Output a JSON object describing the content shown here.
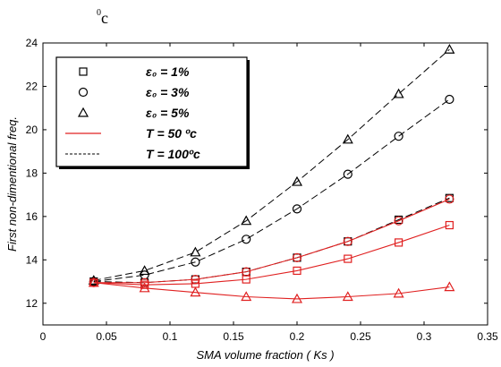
{
  "stray_label": {
    "sup": "0",
    "text": "c"
  },
  "chart_data": {
    "type": "line",
    "xlabel": "SMA volume fraction ( Ks )",
    "ylabel": "First non-dimentional freq.",
    "xlim": [
      0,
      0.35
    ],
    "ylim": [
      11,
      24
    ],
    "x_ticks": [
      "0",
      "0.05",
      "0.1",
      "0.15",
      "0.2",
      "0.25",
      "0.3",
      "0.35"
    ],
    "y_ticks": [
      "12",
      "14",
      "16",
      "18",
      "20",
      "22",
      "24"
    ],
    "grid": false,
    "legend_placement": "top-left",
    "legend": [
      {
        "label": "ε₀ = 1%",
        "symbol": "square"
      },
      {
        "label": "ε₀ = 3%",
        "symbol": "circle"
      },
      {
        "label": "ε₀ = 5%",
        "symbol": "triangle"
      },
      {
        "label": "T = 50 ºc",
        "symbol": "solid-red-line"
      },
      {
        "label": "T = 100ºc",
        "symbol": "dashed-black-line"
      }
    ],
    "x": [
      0.04,
      0.08,
      0.12,
      0.16,
      0.2,
      0.24,
      0.28,
      0.32
    ],
    "series": [
      {
        "strain": "1%",
        "temperature": "50",
        "marker": "square",
        "color": "#e02020",
        "dash": false,
        "values": [
          12.95,
          12.85,
          12.9,
          13.1,
          13.5,
          14.05,
          14.8,
          15.6
        ]
      },
      {
        "strain": "3%",
        "temperature": "50",
        "marker": "circle",
        "color": "#e02020",
        "dash": false,
        "values": [
          12.95,
          12.95,
          13.1,
          13.45,
          14.1,
          14.85,
          15.8,
          16.8
        ]
      },
      {
        "strain": "5%",
        "temperature": "50",
        "marker": "triangle",
        "color": "#e02020",
        "dash": false,
        "values": [
          12.95,
          12.7,
          12.5,
          12.3,
          12.2,
          12.3,
          12.45,
          12.75
        ]
      },
      {
        "strain": "1%",
        "temperature": "100",
        "marker": "square",
        "color": "#000000",
        "dash": true,
        "values": [
          13.0,
          12.95,
          13.1,
          13.45,
          14.1,
          14.85,
          15.85,
          16.85
        ]
      },
      {
        "strain": "3%",
        "temperature": "100",
        "marker": "circle",
        "color": "#000000",
        "dash": true,
        "values": [
          13.0,
          13.3,
          13.9,
          14.95,
          16.35,
          17.95,
          19.7,
          21.4
        ]
      },
      {
        "strain": "5%",
        "temperature": "100",
        "marker": "triangle",
        "color": "#000000",
        "dash": true,
        "values": [
          13.05,
          13.5,
          14.35,
          15.8,
          17.6,
          19.55,
          21.65,
          23.7
        ]
      }
    ]
  }
}
